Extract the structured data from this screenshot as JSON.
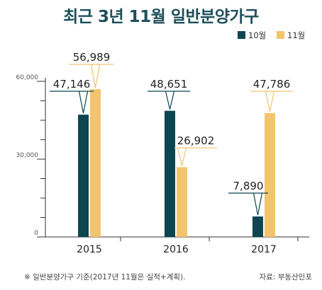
{
  "title": "최근 3년 11월 일반분양가구",
  "footnote": "※ 일반분양가구 기준(2017년 11월은 실적+계획).",
  "source": "자료: 부동산인포",
  "colors": {
    "october": "#0d4650",
    "november": "#f2c46d",
    "axis": "#333333"
  },
  "chart_data": {
    "type": "bar",
    "title": "최근 3년 11월 일반분양가구",
    "categories": [
      "2015",
      "2016",
      "2017"
    ],
    "series": [
      {
        "name": "10월",
        "values": [
          47146,
          48651,
          7890
        ]
      },
      {
        "name": "11월",
        "values": [
          56989,
          26902,
          47786
        ]
      }
    ],
    "data_labels": [
      [
        "47,146",
        "56,989"
      ],
      [
        "48,651",
        "26,902"
      ],
      [
        "7,890",
        "47,786"
      ]
    ],
    "y_ticks": [
      0,
      30000,
      60000
    ],
    "y_tick_labels": [
      "0",
      "30,000",
      "60,000"
    ],
    "ylim": [
      0,
      60000
    ],
    "legend": "top-right",
    "grid": false
  }
}
